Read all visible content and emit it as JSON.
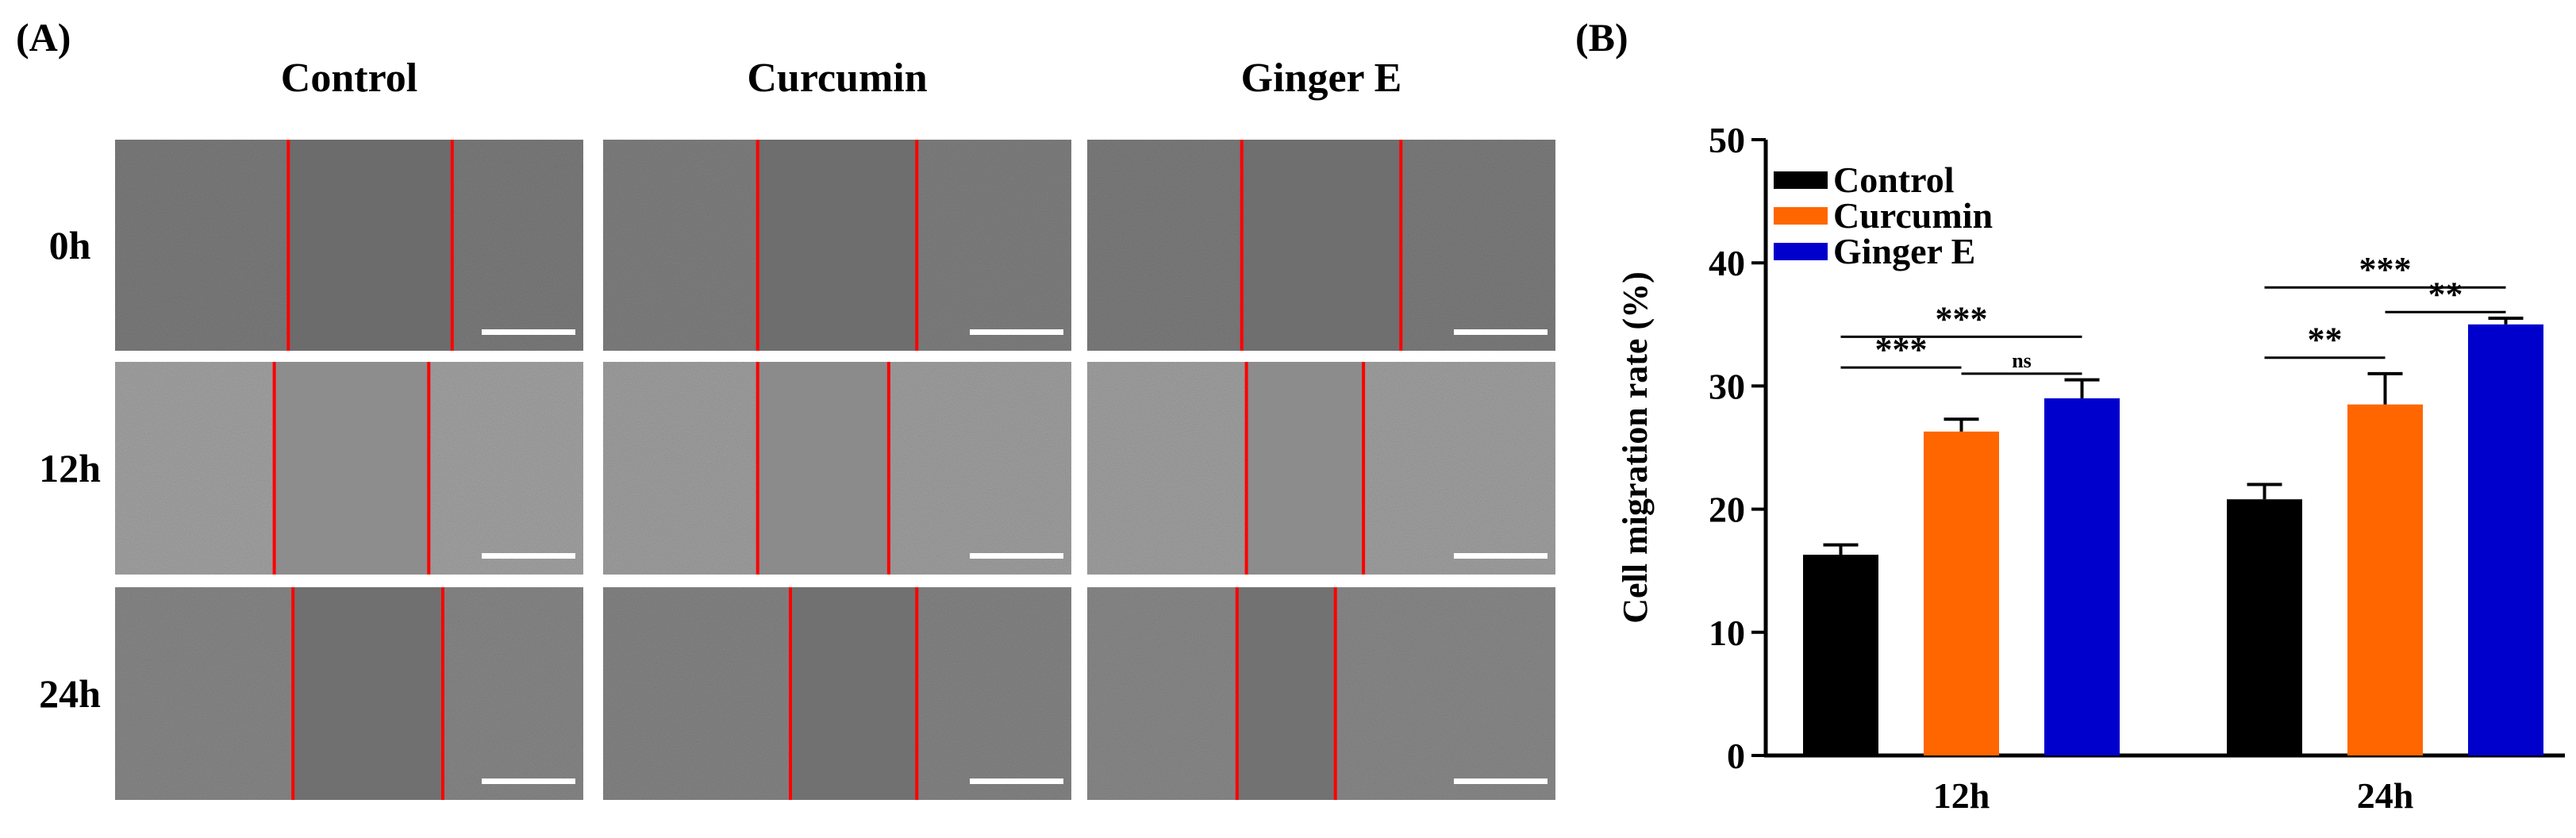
{
  "panel_a": {
    "label": "(A)",
    "columns": [
      "Control",
      "Curcumin",
      "Ginger E"
    ],
    "rows": [
      "0h",
      "12h",
      "24h"
    ]
  },
  "panel_b": {
    "label": "(B)"
  },
  "chart_data": {
    "type": "bar",
    "title": "",
    "xlabel": "",
    "ylabel": "Cell migration rate (%)",
    "ylim": [
      0,
      50
    ],
    "yticks": [
      0,
      10,
      20,
      30,
      40,
      50
    ],
    "categories": [
      "12h",
      "24h"
    ],
    "series": [
      {
        "name": "Control",
        "color": "#000000",
        "values": [
          16.3,
          20.8
        ],
        "errors": [
          0.8,
          1.2
        ]
      },
      {
        "name": "Curcumin",
        "color": "#ff6600",
        "values": [
          26.3,
          28.5
        ],
        "errors": [
          1.0,
          2.5
        ]
      },
      {
        "name": "Ginger E",
        "color": "#0000cc",
        "values": [
          29.0,
          35.0
        ],
        "errors": [
          1.5,
          0.5
        ]
      }
    ],
    "legend_position": "top-left",
    "significance": [
      {
        "category": "12h",
        "from": "Control",
        "to": "Curcumin",
        "label": "***"
      },
      {
        "category": "12h",
        "from": "Control",
        "to": "Ginger E",
        "label": "***"
      },
      {
        "category": "12h",
        "from": "Curcumin",
        "to": "Ginger E",
        "label": "ns"
      },
      {
        "category": "24h",
        "from": "Control",
        "to": "Curcumin",
        "label": "**"
      },
      {
        "category": "24h",
        "from": "Control",
        "to": "Ginger E",
        "label": "***"
      },
      {
        "category": "24h",
        "from": "Curcumin",
        "to": "Ginger E",
        "label": "**"
      }
    ]
  }
}
